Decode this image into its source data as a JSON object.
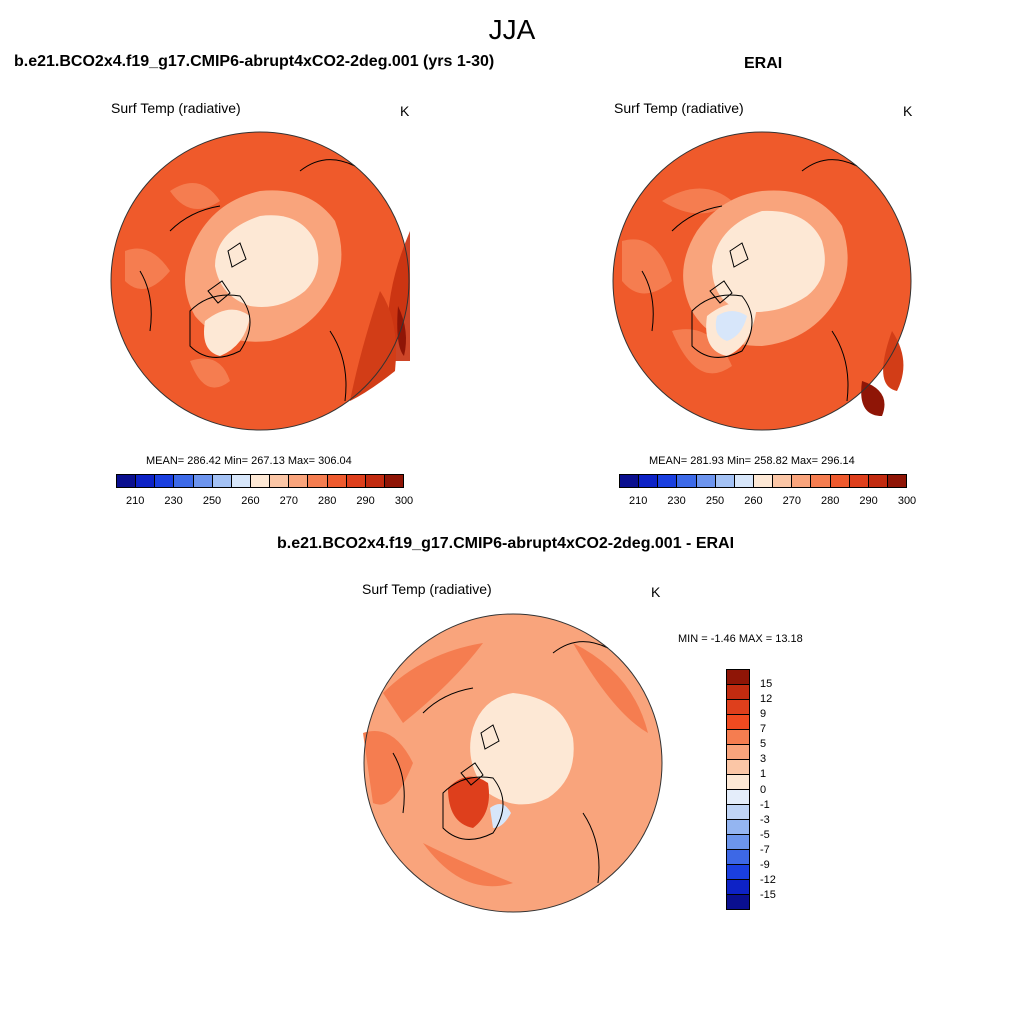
{
  "title": "JJA",
  "panels": {
    "model": {
      "title": "b.e21.BCO2x4.f19_g17.CMIP6-abrupt4xCO2-2deg.001 (yrs 1-30)",
      "variable": "Surf Temp (radiative)",
      "unit": "K",
      "stats": "MEAN= 286.42  Min= 267.13  Max= 306.04"
    },
    "obs": {
      "title": "ERAI",
      "variable": "Surf Temp (radiative)",
      "unit": "K",
      "stats": "MEAN= 281.93  Min= 258.82  Max= 296.14"
    },
    "diff": {
      "title": "b.e21.BCO2x4.f19_g17.CMIP6-abrupt4xCO2-2deg.001 - ERAI",
      "variable": "Surf Temp (radiative)",
      "unit": "K",
      "stats": "MIN =  -1.46 MAX =  13.18"
    }
  },
  "abs_colorbar": {
    "labels": [
      "210",
      "230",
      "250",
      "260",
      "270",
      "280",
      "290",
      "300"
    ],
    "colors": [
      "#0a0f8f",
      "#0d22c6",
      "#1a3fe0",
      "#3d6ae8",
      "#6d95ef",
      "#a4c2f5",
      "#d7e6fa",
      "#fde8d5",
      "#fbc6a6",
      "#f9a47c",
      "#f57d50",
      "#ee5a2e",
      "#de3f1c",
      "#c22b10",
      "#8f1506"
    ]
  },
  "diff_colorbar": {
    "labels": [
      "15",
      "12",
      "9",
      "7",
      "5",
      "3",
      "1",
      "0",
      "-1",
      "-3",
      "-5",
      "-7",
      "-9",
      "-12",
      "-15"
    ],
    "colors": [
      "#8f1506",
      "#c22b10",
      "#de3f1c",
      "#f04a20",
      "#f57d50",
      "#f9a47c",
      "#fbc6a6",
      "#fde8d5",
      "#e4edfa",
      "#bfd4f6",
      "#94b5f1",
      "#6c95ec",
      "#3d68e6",
      "#1a3fe0",
      "#0d22c6",
      "#0a0f8f"
    ]
  }
}
